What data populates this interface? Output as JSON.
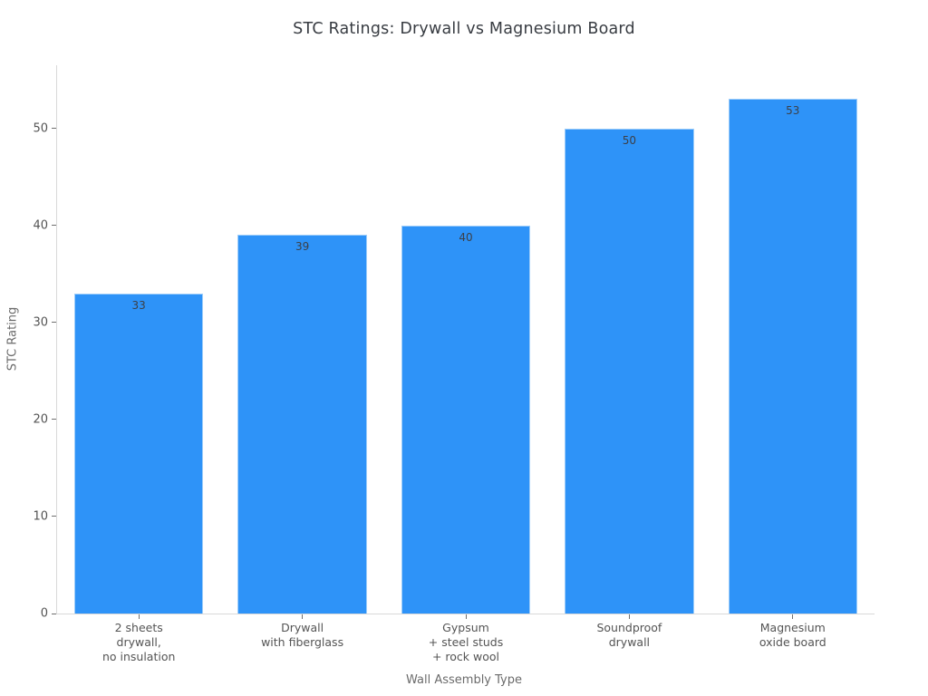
{
  "page": {
    "background": "#ffffff"
  },
  "chart_data": {
    "type": "bar",
    "title": "STC Ratings: Drywall vs Magnesium Board",
    "xlabel": "Wall Assembly Type",
    "ylabel": "STC Rating",
    "categories": [
      "2 sheets\ndrywall,\nno insulation",
      "Drywall\nwith fiberglass",
      "Gypsum\n+ steel studs\n+ rock wool",
      "Soundproof\ndrywall",
      "Magnesium\noxide board"
    ],
    "values": [
      33,
      39,
      40,
      50,
      53
    ],
    "bar_labels": [
      "33",
      "39",
      "40",
      "50",
      "53"
    ],
    "yticks": [
      0,
      10,
      20,
      30,
      40,
      50
    ],
    "ylim": [
      0,
      56.5
    ],
    "grid": false,
    "legend_position": "none",
    "bar_width_fraction": 0.79,
    "colors": {
      "bar_fill": "#2e93f8",
      "bar_border": "#9ecdf9",
      "spine": "#d9d9d9",
      "tick_text": "#545454",
      "axis_title_text": "#6b6b6b",
      "chart_title_text": "#383c42",
      "value_label_text": "#3c4048"
    }
  }
}
